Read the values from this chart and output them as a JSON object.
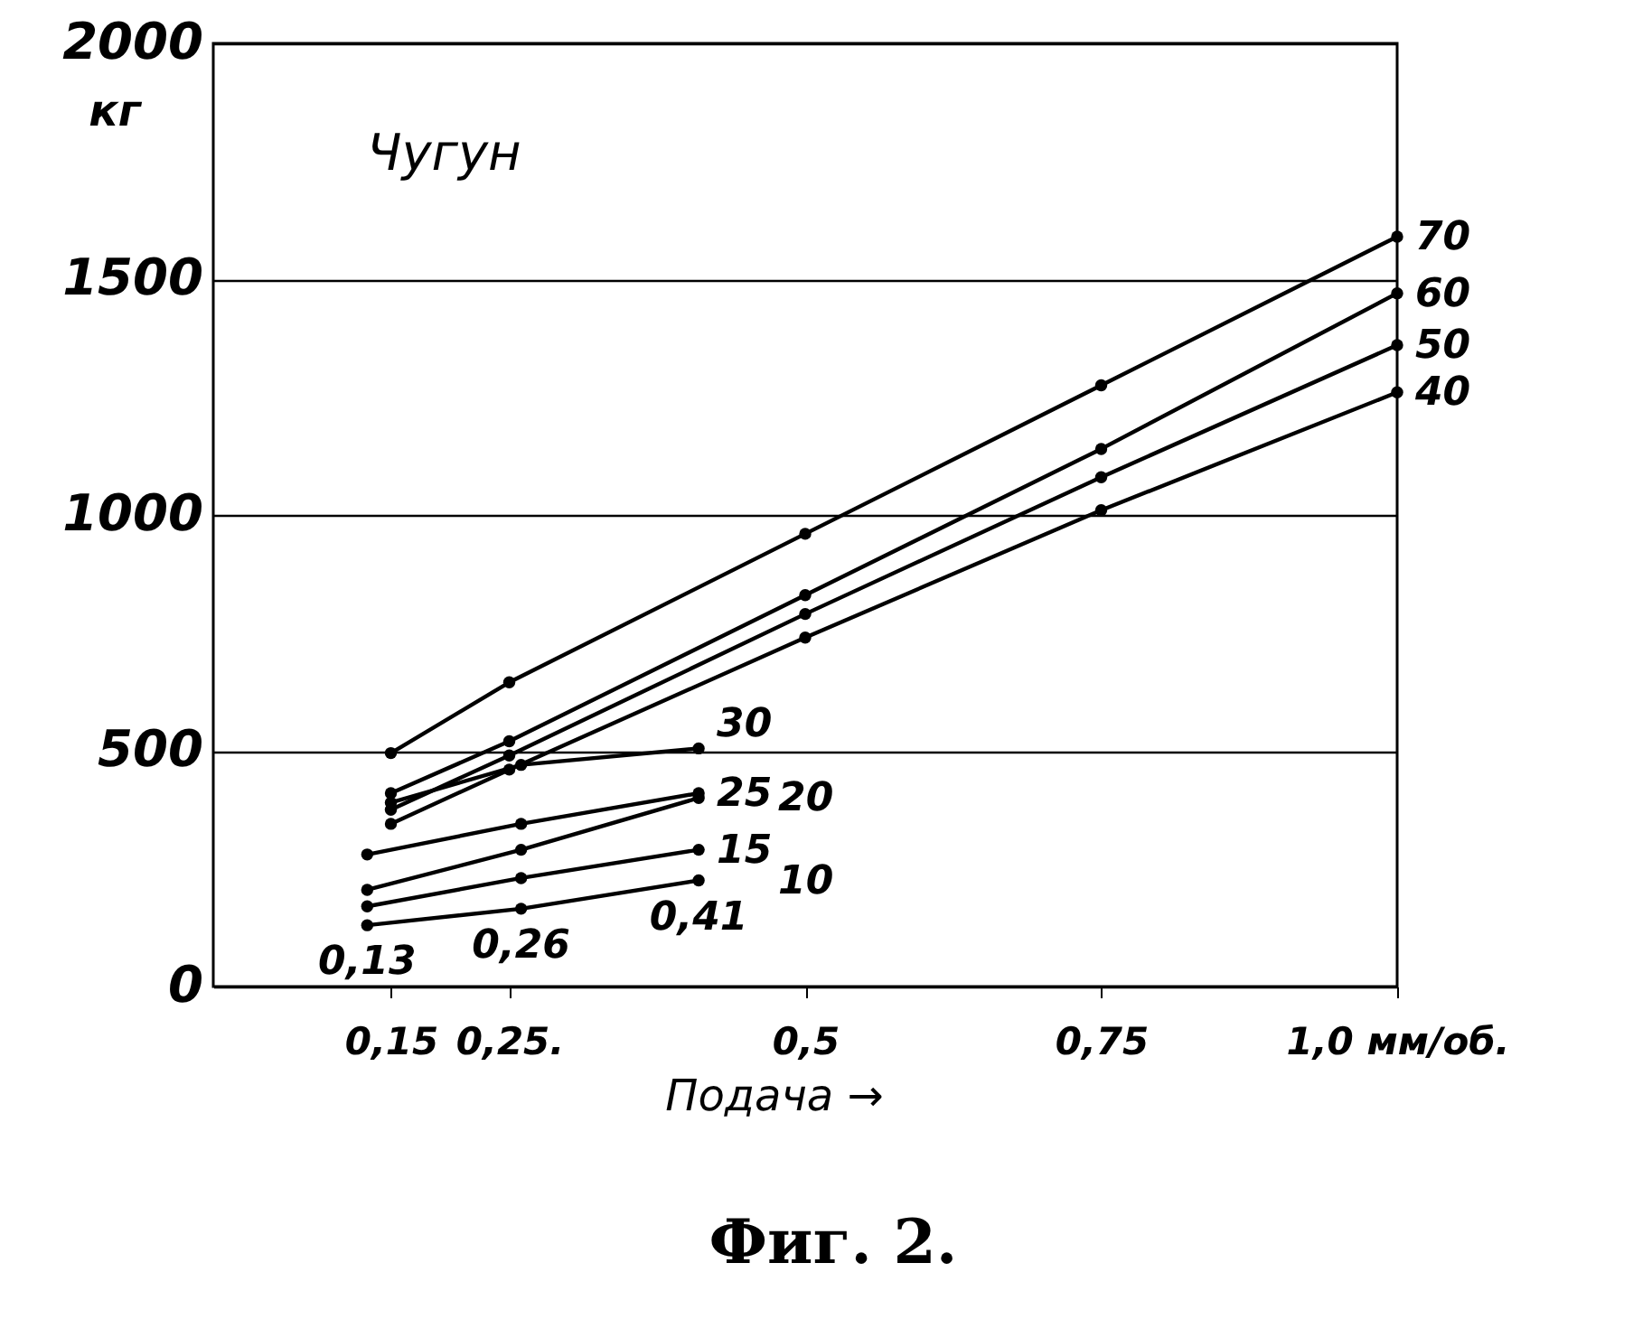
{
  "chart_data": {
    "type": "line",
    "title": "Чугун",
    "xlabel": "Подача →",
    "ylabel": "кг",
    "xlim": [
      0,
      1.0
    ],
    "xticks": [
      {
        "value": 0.15,
        "label": "0,15"
      },
      {
        "value": 0.25,
        "label": "0,25."
      },
      {
        "value": 0.5,
        "label": "0,5"
      },
      {
        "value": 0.75,
        "label": "0,75"
      },
      {
        "value": 1.0,
        "label": "1,0 мм/об."
      }
    ],
    "ylim": [
      0,
      2000
    ],
    "yticks": [
      0,
      500,
      1000,
      1500,
      2000
    ],
    "grid": "y",
    "marker": "circle",
    "line_style": "solid",
    "series": [
      {
        "name": "70",
        "color": "#000000",
        "x": [
          0.15,
          0.25,
          0.5,
          0.75,
          1.0
        ],
        "values": [
          495,
          645,
          960,
          1275,
          1590
        ]
      },
      {
        "name": "60",
        "color": "#000000",
        "x": [
          0.15,
          0.25,
          0.5,
          0.75,
          1.0
        ],
        "values": [
          410,
          520,
          830,
          1140,
          1470
        ]
      },
      {
        "name": "50",
        "color": "#000000",
        "x": [
          0.15,
          0.25,
          0.5,
          0.75,
          1.0
        ],
        "values": [
          375,
          490,
          790,
          1080,
          1360
        ]
      },
      {
        "name": "40",
        "color": "#000000",
        "x": [
          0.15,
          0.25,
          0.5,
          0.75,
          1.0
        ],
        "values": [
          345,
          460,
          740,
          1010,
          1260
        ]
      },
      {
        "name": "30",
        "color": "#000000",
        "x": [
          0.15,
          0.26,
          0.41
        ],
        "values": [
          390,
          470,
          505
        ]
      },
      {
        "name": "25",
        "color": "#000000",
        "x": [
          0.13,
          0.26,
          0.41
        ],
        "values": [
          280,
          345,
          410
        ]
      },
      {
        "name": "20",
        "color": "#000000",
        "x": [
          0.13,
          0.26,
          0.41
        ],
        "values": [
          205,
          290,
          400
        ]
      },
      {
        "name": "15",
        "color": "#000000",
        "x": [
          0.13,
          0.26,
          0.41
        ],
        "values": [
          170,
          230,
          290
        ]
      },
      {
        "name": "10",
        "color": "#000000",
        "x": [
          0.13,
          0.26,
          0.41
        ],
        "values": [
          130,
          165,
          225
        ]
      }
    ],
    "annotations": [
      {
        "text": "0,13",
        "x": 0.13,
        "y": 130
      },
      {
        "text": "0,26",
        "x": 0.26,
        "y": 165
      },
      {
        "text": "0,41",
        "x": 0.41,
        "y": 225
      },
      "Фиг. 2."
    ]
  }
}
